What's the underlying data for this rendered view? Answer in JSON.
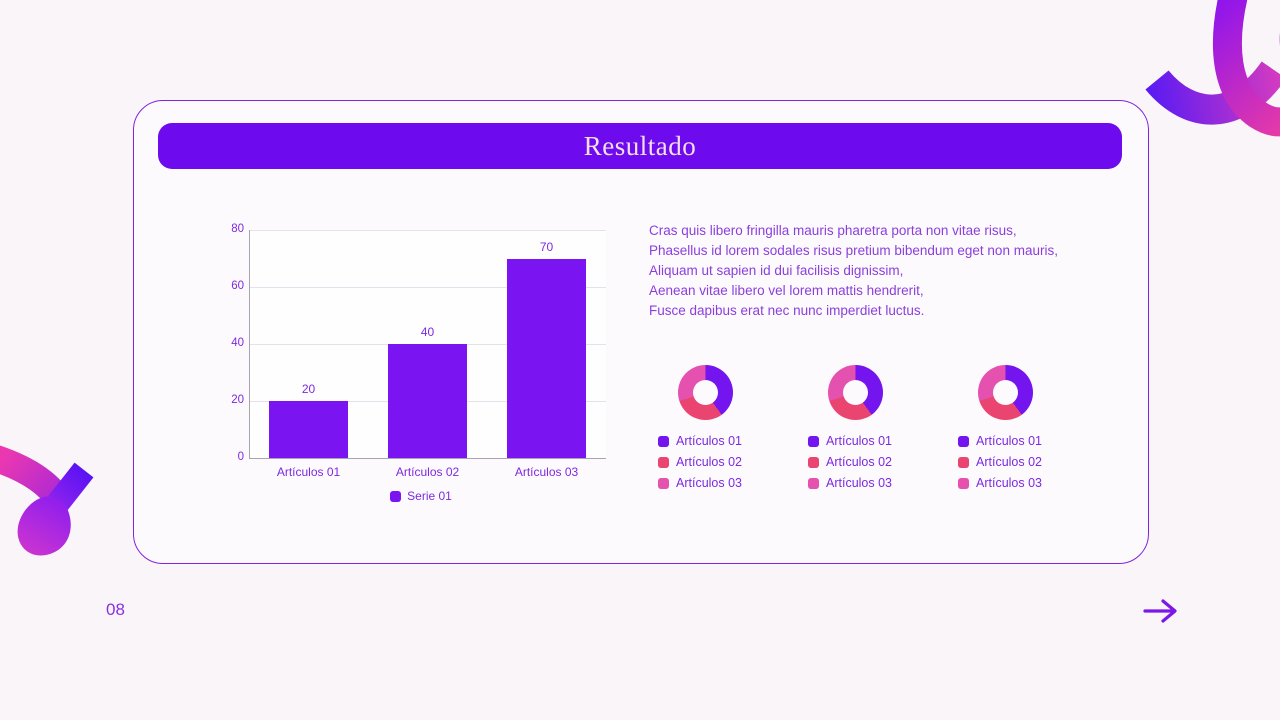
{
  "card": {
    "title": "Resultado"
  },
  "paragraph": {
    "lines": [
      "Cras quis libero fringilla mauris pharetra porta non vitae risus,",
      "Phasellus id lorem sodales risus pretium bibendum eget non mauris,",
      "Aliquam ut sapien id dui facilisis dignissim,",
      "Aenean vitae libero vel lorem mattis hendrerit,",
      "Fusce dapibus erat nec nunc imperdiet luctus."
    ]
  },
  "chart_data": [
    {
      "type": "bar",
      "categories": [
        "Artículos 01",
        "Artículos 02",
        "Artículos 03"
      ],
      "series": [
        {
          "name": "Serie 01",
          "values": [
            20,
            40,
            70
          ],
          "color": "#7a14f0"
        }
      ],
      "title": "",
      "xlabel": "",
      "ylabel": "",
      "ylim": [
        0,
        80
      ],
      "yticks": [
        0,
        20,
        40,
        60,
        80
      ],
      "grid": true,
      "data_labels": [
        20,
        40,
        70
      ],
      "legend_position": "bottom"
    },
    {
      "type": "pie",
      "donut": true,
      "labels": [
        "Artículos 01",
        "Artículos 02",
        "Artículos 03"
      ],
      "values": [
        40,
        30,
        30
      ],
      "colors": [
        "#7414ef",
        "#e94570",
        "#e451ae"
      ],
      "legend_position": "bottom"
    },
    {
      "type": "pie",
      "donut": true,
      "labels": [
        "Artículos 01",
        "Artículos 02",
        "Artículos 03"
      ],
      "values": [
        40,
        30,
        30
      ],
      "colors": [
        "#7414ef",
        "#e94570",
        "#e451ae"
      ],
      "legend_position": "bottom"
    },
    {
      "type": "pie",
      "donut": true,
      "labels": [
        "Artículos 01",
        "Artículos 02",
        "Artículos 03"
      ],
      "values": [
        40,
        30,
        30
      ],
      "colors": [
        "#7414ef",
        "#e94570",
        "#e451ae"
      ],
      "legend_position": "bottom"
    }
  ],
  "footer": {
    "page_number": "08"
  },
  "icons": {
    "next_arrow": "arrow-right-icon"
  },
  "colors": {
    "background": "#faf5f9",
    "accent_purple": "#6d0aee",
    "card_border": "#8224dc",
    "title_text": "#f5dee9",
    "chart_text": "#7d2ae0",
    "paragraph_text": "#8a3fdc",
    "pink": "#e94570",
    "magenta": "#e451ae",
    "ribbon_gradient_start": "#5b1bf2",
    "ribbon_gradient_end": "#f5409b"
  }
}
